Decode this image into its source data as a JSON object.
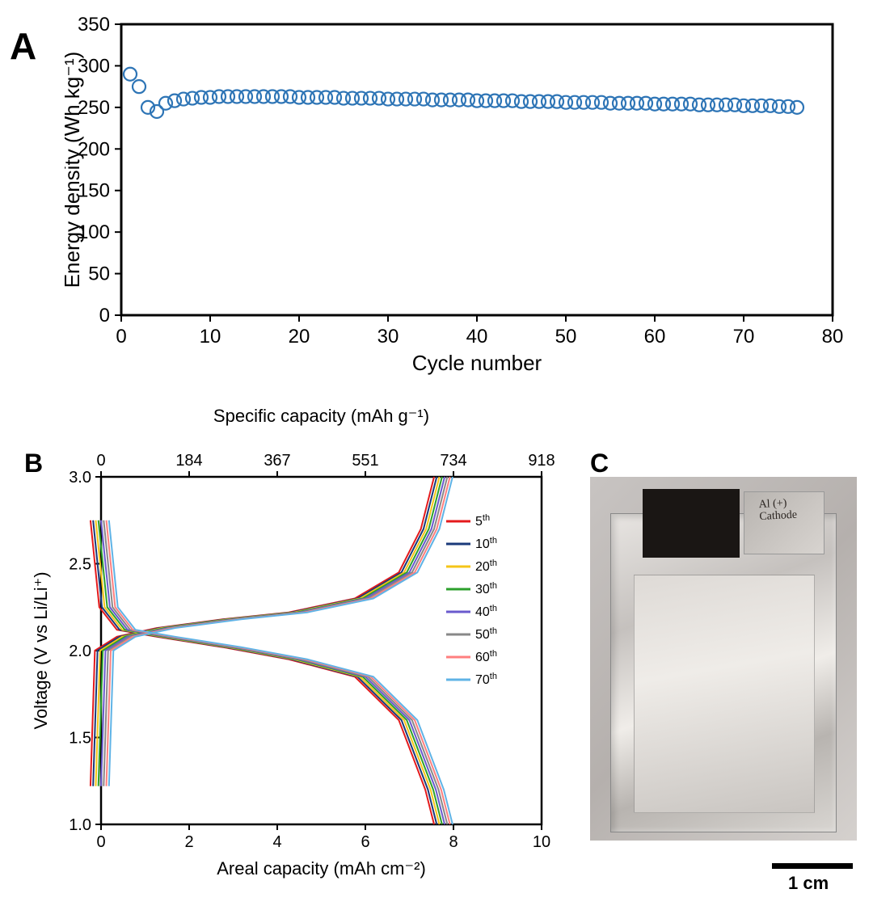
{
  "panelA": {
    "label": "A",
    "label_fontsize": 46,
    "type": "scatter",
    "xlabel": "Cycle number",
    "ylabel": "Energy density (Wh kg⁻¹)",
    "label_fontsize_axis": 26,
    "tick_fontsize": 24,
    "xlim": [
      0,
      80
    ],
    "ylim": [
      0,
      350
    ],
    "xticks": [
      0,
      10,
      20,
      30,
      40,
      50,
      60,
      70,
      80
    ],
    "yticks": [
      0,
      50,
      100,
      150,
      200,
      250,
      300,
      350
    ],
    "marker": "open-circle",
    "marker_size": 8,
    "marker_color": "#2e75b6",
    "marker_linewidth": 2.2,
    "background": "#ffffff",
    "border_color": "#000000",
    "border_width": 3,
    "data_x": [
      1,
      2,
      3,
      4,
      5,
      6,
      7,
      8,
      9,
      10,
      11,
      12,
      13,
      14,
      15,
      16,
      17,
      18,
      19,
      20,
      21,
      22,
      23,
      24,
      25,
      26,
      27,
      28,
      29,
      30,
      31,
      32,
      33,
      34,
      35,
      36,
      37,
      38,
      39,
      40,
      41,
      42,
      43,
      44,
      45,
      46,
      47,
      48,
      49,
      50,
      51,
      52,
      53,
      54,
      55,
      56,
      57,
      58,
      59,
      60,
      61,
      62,
      63,
      64,
      65,
      66,
      67,
      68,
      69,
      70,
      71,
      72,
      73,
      74,
      75,
      76
    ],
    "data_y": [
      290,
      275,
      250,
      245,
      255,
      258,
      260,
      261,
      262,
      262,
      263,
      263,
      263,
      263,
      263,
      263,
      263,
      263,
      263,
      262,
      262,
      262,
      262,
      262,
      261,
      261,
      261,
      261,
      261,
      260,
      260,
      260,
      260,
      260,
      259,
      259,
      259,
      259,
      259,
      258,
      258,
      258,
      258,
      258,
      257,
      257,
      257,
      257,
      257,
      256,
      256,
      256,
      256,
      256,
      255,
      255,
      255,
      255,
      255,
      254,
      254,
      254,
      254,
      254,
      253,
      253,
      253,
      253,
      253,
      252,
      252,
      252,
      252,
      251,
      251,
      250
    ]
  },
  "panelB": {
    "label": "B",
    "label_fontsize": 32,
    "type": "line",
    "xlabel_bottom": "Areal capacity (mAh cm⁻²)",
    "xlabel_top": "Specific capacity (mAh g⁻¹)",
    "ylabel": "Voltage (V vs Li/Li⁺)",
    "label_fontsize_axis": 22,
    "tick_fontsize": 20,
    "xlim_bottom": [
      0,
      10
    ],
    "xlim_top": [
      0,
      918
    ],
    "ylim": [
      1.0,
      3.0
    ],
    "xticks_bottom": [
      0,
      2,
      4,
      6,
      8,
      10
    ],
    "xticks_top": [
      0,
      184,
      367,
      551,
      734,
      918
    ],
    "yticks": [
      1.0,
      1.5,
      2.0,
      2.5,
      3.0
    ],
    "background": "#ffffff",
    "border_color": "#000000",
    "border_width": 2.5,
    "line_width": 2,
    "legend_fontsize": 16,
    "series": [
      {
        "label": "5",
        "suffix": "th",
        "color": "#e41a1c"
      },
      {
        "label": "10",
        "suffix": "th",
        "color": "#1a3a7a"
      },
      {
        "label": "20",
        "suffix": "th",
        "color": "#f5c518"
      },
      {
        "label": "30",
        "suffix": "th",
        "color": "#2ca02c"
      },
      {
        "label": "40",
        "suffix": "th",
        "color": "#6a5acd"
      },
      {
        "label": "50",
        "suffix": "th",
        "color": "#888888"
      },
      {
        "label": "60",
        "suffix": "th",
        "color": "#ff7f7f"
      },
      {
        "label": "70",
        "suffix": "th",
        "color": "#5fb3e6"
      }
    ],
    "charge_curve_template": [
      [
        0,
        1.22
      ],
      [
        0.1,
        2.0
      ],
      [
        0.6,
        2.08
      ],
      [
        1.5,
        2.13
      ],
      [
        3,
        2.18
      ],
      [
        4.5,
        2.22
      ],
      [
        6,
        2.3
      ],
      [
        7,
        2.45
      ],
      [
        7.5,
        2.7
      ],
      [
        7.8,
        3.0
      ]
    ],
    "discharge_curve_template": [
      [
        0,
        2.75
      ],
      [
        0.2,
        2.25
      ],
      [
        0.6,
        2.12
      ],
      [
        1.5,
        2.08
      ],
      [
        3,
        2.02
      ],
      [
        4.5,
        1.95
      ],
      [
        6,
        1.85
      ],
      [
        7,
        1.6
      ],
      [
        7.6,
        1.2
      ],
      [
        7.8,
        1.0
      ]
    ],
    "curve_x_spread": 0.06
  },
  "panelC": {
    "label": "C",
    "label_fontsize": 32,
    "type": "photograph",
    "description": "pouch-cell",
    "handwritten_text": "Al (+) Cathode",
    "scalebar_label": "1 cm",
    "scalebar_color": "#000000",
    "scalebar_fontsize": 22,
    "background_tone": "#c8c4c2"
  }
}
